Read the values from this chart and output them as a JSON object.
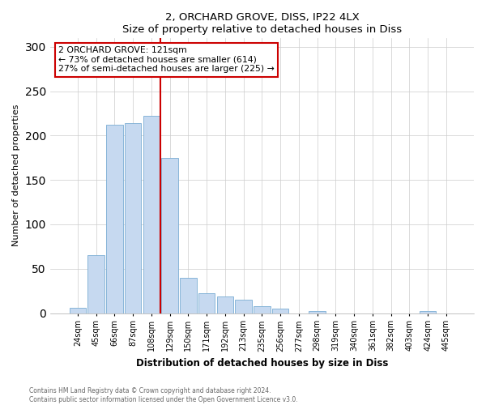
{
  "title": "2, ORCHARD GROVE, DISS, IP22 4LX",
  "subtitle": "Size of property relative to detached houses in Diss",
  "xlabel": "Distribution of detached houses by size in Diss",
  "ylabel": "Number of detached properties",
  "footnote1": "Contains HM Land Registry data © Crown copyright and database right 2024.",
  "footnote2": "Contains public sector information licensed under the Open Government Licence v3.0.",
  "bar_labels": [
    "24sqm",
    "45sqm",
    "66sqm",
    "87sqm",
    "108sqm",
    "129sqm",
    "150sqm",
    "171sqm",
    "192sqm",
    "213sqm",
    "235sqm",
    "256sqm",
    "277sqm",
    "298sqm",
    "319sqm",
    "340sqm",
    "361sqm",
    "382sqm",
    "403sqm",
    "424sqm",
    "445sqm"
  ],
  "bar_values": [
    6,
    65,
    212,
    214,
    222,
    175,
    40,
    22,
    19,
    15,
    8,
    5,
    0,
    2,
    0,
    0,
    0,
    0,
    0,
    2,
    0
  ],
  "bar_color": "#c6d9f0",
  "bar_edge_color": "#7aadd4",
  "vline_x_index": 5,
  "vline_color": "#cc0000",
  "annotation_text": "2 ORCHARD GROVE: 121sqm\n← 73% of detached houses are smaller (614)\n27% of semi-detached houses are larger (225) →",
  "annotation_box_color": "#ffffff",
  "annotation_box_edge": "#cc0000",
  "ylim": [
    0,
    310
  ],
  "yticks": [
    0,
    50,
    100,
    150,
    200,
    250,
    300
  ]
}
